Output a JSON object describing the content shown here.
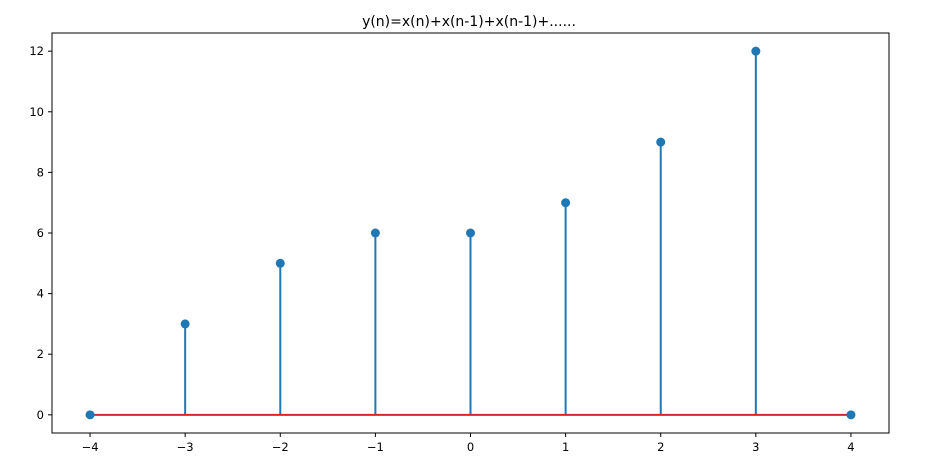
{
  "chart_data": {
    "type": "stem",
    "title": "y(n)=x(n)+x(n-1)+x(n-1)+......",
    "xlabel": "",
    "ylabel": "",
    "x": [
      -4,
      -3,
      -2,
      -1,
      0,
      1,
      2,
      3,
      4
    ],
    "y": [
      0,
      3,
      5,
      6,
      6,
      7,
      9,
      12,
      0
    ],
    "xlim": [
      -4.4,
      4.4
    ],
    "ylim": [
      -0.6,
      12.6
    ],
    "xticks": [
      -4,
      -3,
      -2,
      -1,
      0,
      1,
      2,
      3,
      4
    ],
    "xtick_labels": [
      "−4",
      "−3",
      "−2",
      "−1",
      "0",
      "1",
      "2",
      "3",
      "4"
    ],
    "yticks": [
      0,
      2,
      4,
      6,
      8,
      10,
      12
    ],
    "ytick_labels": [
      "0",
      "2",
      "4",
      "6",
      "8",
      "10",
      "12"
    ],
    "grid": false,
    "colors": {
      "stem": "#1f77b4",
      "marker": "#1f77b4",
      "baseline": "#d62728",
      "axes": "#000000"
    }
  }
}
